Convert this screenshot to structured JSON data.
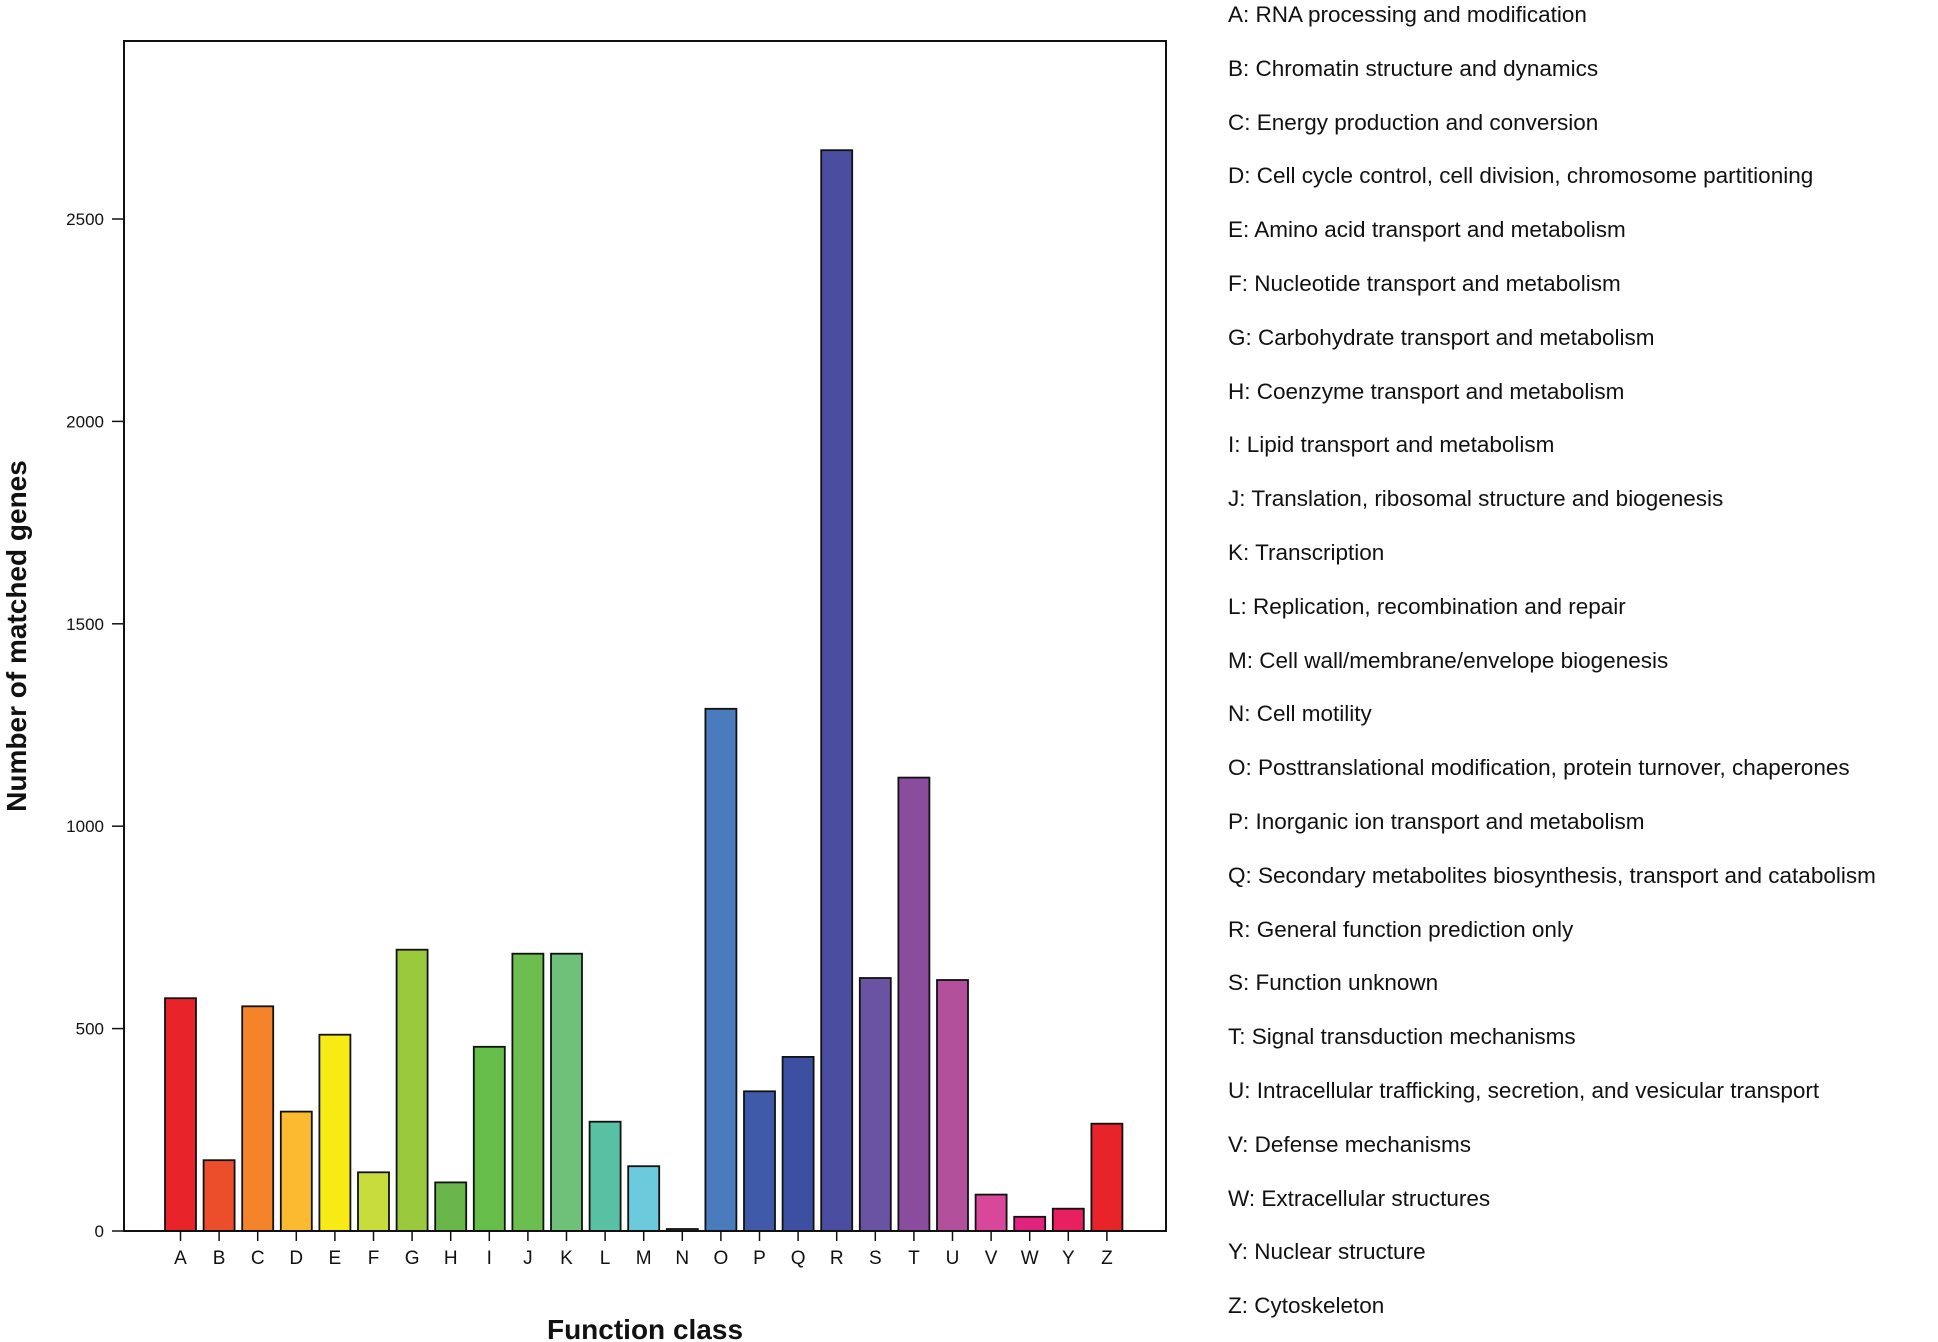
{
  "chart_data": {
    "type": "bar",
    "title": "",
    "xlabel": "Function class",
    "ylabel": "Number of matched genes",
    "ylim": [
      0,
      3050
    ],
    "yticks": [
      0,
      500,
      1000,
      1500,
      2000,
      2500
    ],
    "grid": false,
    "legend_position": "right",
    "categories": [
      "A",
      "B",
      "C",
      "D",
      "E",
      "F",
      "G",
      "H",
      "I",
      "J",
      "K",
      "L",
      "M",
      "N",
      "O",
      "P",
      "Q",
      "R",
      "S",
      "T",
      "U",
      "V",
      "W",
      "Y",
      "Z"
    ],
    "values": [
      575,
      175,
      555,
      295,
      485,
      145,
      695,
      120,
      455,
      685,
      685,
      270,
      160,
      5,
      1290,
      345,
      430,
      2670,
      625,
      1120,
      620,
      90,
      35,
      55,
      265
    ],
    "colors": [
      "#e8242a",
      "#ec4d2a",
      "#f5832a",
      "#fbba30",
      "#f7ea15",
      "#c7dc3a",
      "#9bc93e",
      "#6ab64a",
      "#67bd4a",
      "#6cbf4f",
      "#6fc17a",
      "#58c1a3",
      "#6bcadb",
      "#4f8fc7",
      "#4a7bbd",
      "#3f5aa8",
      "#3d4fa0",
      "#4a4da0",
      "#6a53a2",
      "#8a4d9e",
      "#b3509c",
      "#d9479a",
      "#e1237f",
      "#e8205f",
      "#e8242a"
    ],
    "legend": [
      "A: RNA processing and modification",
      "B: Chromatin structure and dynamics",
      "C: Energy production and conversion",
      "D: Cell cycle control, cell division, chromosome partitioning",
      "E: Amino acid transport and metabolism",
      "F: Nucleotide transport and metabolism",
      "G: Carbohydrate transport and metabolism",
      "H: Coenzyme transport and metabolism",
      "I: Lipid transport and metabolism",
      "J: Translation, ribosomal structure and biogenesis",
      "K: Transcription",
      "L: Replication, recombination and repair",
      "M: Cell wall/membrane/envelope biogenesis",
      "N: Cell motility",
      "O: Posttranslational modification, protein turnover, chaperones",
      "P: Inorganic ion transport and metabolism",
      "Q: Secondary metabolites biosynthesis, transport and catabolism",
      "R: General function prediction only",
      "S: Function unknown",
      "T: Signal transduction mechanisms",
      "U: Intracellular trafficking, secretion, and vesicular transport",
      "V: Defense mechanisms",
      "W: Extracellular structures",
      "Y: Nuclear structure",
      "Z: Cytoskeleton"
    ]
  }
}
